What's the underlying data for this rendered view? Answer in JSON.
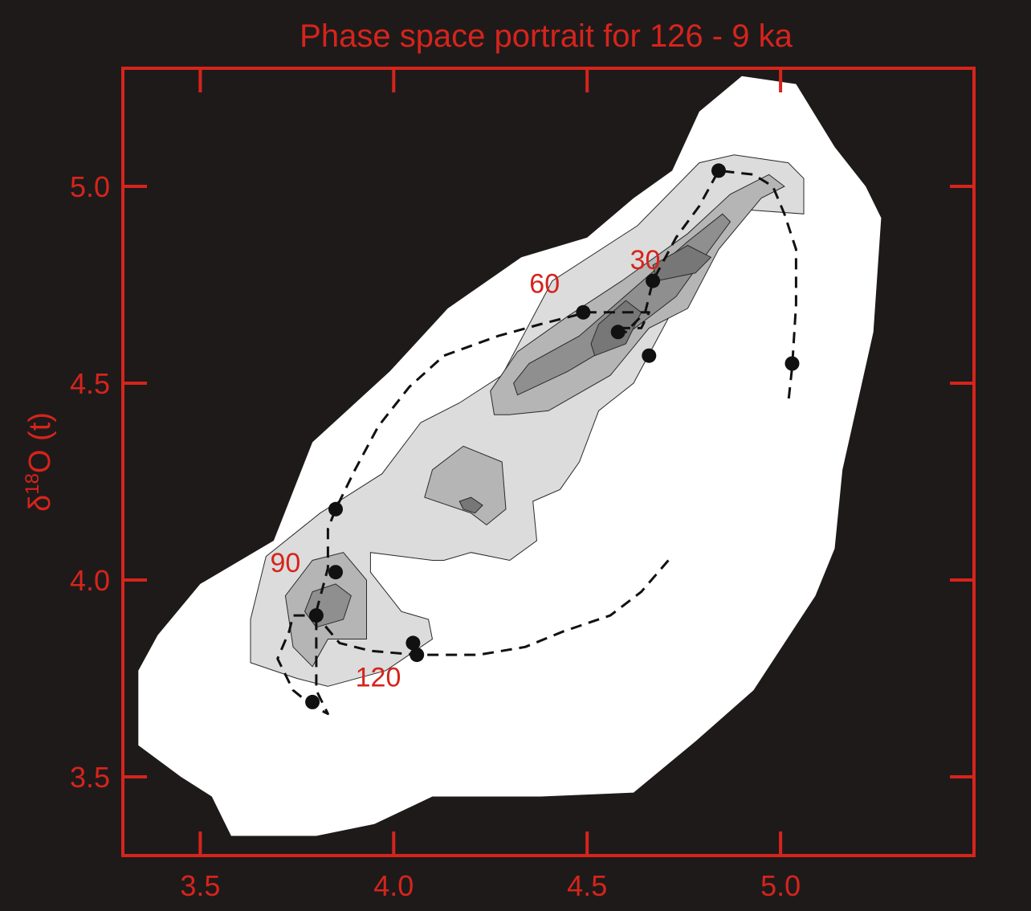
{
  "chart_data": {
    "type": "scatter",
    "subtype": "phase-space density contour with trajectory",
    "title": "Phase space portrait for 126 - 9 ka",
    "xlabel": "",
    "ylabel_main": "δ",
    "ylabel_sup": "18",
    "ylabel_rest": "O (t)",
    "xlim": [
      3.3,
      5.5
    ],
    "ylim": [
      3.3,
      5.3
    ],
    "x_ticks": [
      3.5,
      4.0,
      4.5,
      5.0
    ],
    "x_tick_labels": [
      "3.5",
      "4.0",
      "4.5",
      "5.0"
    ],
    "y_ticks": [
      3.5,
      4.0,
      4.5,
      5.0
    ],
    "y_tick_labels": [
      "3.5",
      "4.0",
      "4.5",
      "5.0"
    ],
    "grid": false,
    "colors": {
      "background": "#1e1a1a",
      "axes": "#d6241c",
      "density_levels": [
        "#ffffff",
        "#dcdcdc",
        "#b5b5b5",
        "#8f8f8f",
        "#777777"
      ],
      "trajectory": "#111111"
    },
    "density_contours": [
      {
        "level": 1,
        "color": "#ffffff",
        "points": [
          [
            3.58,
            3.35
          ],
          [
            3.8,
            3.35
          ],
          [
            3.95,
            3.38
          ],
          [
            4.1,
            3.45
          ],
          [
            4.38,
            3.45
          ],
          [
            4.62,
            3.46
          ],
          [
            4.78,
            3.59
          ],
          [
            4.93,
            3.72
          ],
          [
            5.09,
            3.96
          ],
          [
            5.14,
            4.08
          ],
          [
            5.16,
            4.28
          ],
          [
            5.24,
            4.63
          ],
          [
            5.26,
            4.92
          ],
          [
            5.22,
            5.0
          ],
          [
            5.14,
            5.1
          ],
          [
            5.04,
            5.26
          ],
          [
            4.9,
            5.28
          ],
          [
            4.79,
            5.19
          ],
          [
            4.72,
            5.04
          ],
          [
            4.62,
            4.97
          ],
          [
            4.5,
            4.87
          ],
          [
            4.33,
            4.82
          ],
          [
            4.14,
            4.69
          ],
          [
            3.99,
            4.53
          ],
          [
            3.79,
            4.35
          ],
          [
            3.69,
            4.1
          ],
          [
            3.5,
            3.99
          ],
          [
            3.39,
            3.86
          ],
          [
            3.34,
            3.77
          ],
          [
            3.34,
            3.58
          ],
          [
            3.45,
            3.5
          ],
          [
            3.53,
            3.45
          ]
        ]
      },
      {
        "level": 2,
        "color": "#dcdcdc",
        "points": [
          [
            3.83,
            3.73
          ],
          [
            3.98,
            3.77
          ],
          [
            4.1,
            3.85
          ],
          [
            4.09,
            3.9
          ],
          [
            4.02,
            3.92
          ],
          [
            3.94,
            4.02
          ],
          [
            3.94,
            4.07
          ],
          [
            4.1,
            4.05
          ],
          [
            4.13,
            4.05
          ],
          [
            4.2,
            4.07
          ],
          [
            4.3,
            4.05
          ],
          [
            4.37,
            4.1
          ],
          [
            4.36,
            4.2
          ],
          [
            4.43,
            4.23
          ],
          [
            4.48,
            4.3
          ],
          [
            4.53,
            4.43
          ],
          [
            4.62,
            4.5
          ],
          [
            4.74,
            4.72
          ],
          [
            4.84,
            4.91
          ],
          [
            4.92,
            4.94
          ],
          [
            5.06,
            4.93
          ],
          [
            5.06,
            5.02
          ],
          [
            5.02,
            5.06
          ],
          [
            4.88,
            5.08
          ],
          [
            4.79,
            5.06
          ],
          [
            4.63,
            4.9
          ],
          [
            4.41,
            4.76
          ],
          [
            4.28,
            4.52
          ],
          [
            4.17,
            4.45
          ],
          [
            4.07,
            4.4
          ],
          [
            3.97,
            4.27
          ],
          [
            3.81,
            4.17
          ],
          [
            3.67,
            4.06
          ],
          [
            3.63,
            3.9
          ],
          [
            3.63,
            3.79
          ],
          [
            3.75,
            3.75
          ]
        ]
      },
      {
        "level": 3,
        "color": "#b5b5b5",
        "points": [
          [
            3.83,
            3.85
          ],
          [
            3.93,
            3.85
          ],
          [
            3.93,
            4.0
          ],
          [
            3.87,
            4.07
          ],
          [
            3.79,
            4.05
          ],
          [
            3.72,
            3.96
          ],
          [
            3.74,
            3.83
          ],
          [
            3.79,
            3.78
          ]
        ]
      },
      {
        "level": 3,
        "color": "#b5b5b5",
        "points": [
          [
            4.2,
            4.17
          ],
          [
            4.24,
            4.14
          ],
          [
            4.29,
            4.18
          ],
          [
            4.28,
            4.3
          ],
          [
            4.18,
            4.34
          ],
          [
            4.1,
            4.28
          ],
          [
            4.08,
            4.21
          ]
        ]
      },
      {
        "level": 3,
        "color": "#b5b5b5",
        "points": [
          [
            4.3,
            4.42
          ],
          [
            4.4,
            4.43
          ],
          [
            4.56,
            4.52
          ],
          [
            4.66,
            4.64
          ],
          [
            4.76,
            4.69
          ],
          [
            4.84,
            4.84
          ],
          [
            4.95,
            4.97
          ],
          [
            5.01,
            5.0
          ],
          [
            4.97,
            5.03
          ],
          [
            4.87,
            4.98
          ],
          [
            4.76,
            4.88
          ],
          [
            4.59,
            4.76
          ],
          [
            4.45,
            4.67
          ],
          [
            4.32,
            4.58
          ],
          [
            4.25,
            4.48
          ],
          [
            4.26,
            4.42
          ]
        ]
      },
      {
        "level": 4,
        "color": "#8f8f8f",
        "points": [
          [
            3.8,
            3.88
          ],
          [
            3.87,
            3.9
          ],
          [
            3.89,
            3.96
          ],
          [
            3.85,
            3.99
          ],
          [
            3.79,
            3.97
          ],
          [
            3.77,
            3.92
          ]
        ]
      },
      {
        "level": 4,
        "color": "#8f8f8f",
        "points": [
          [
            4.32,
            4.47
          ],
          [
            4.45,
            4.53
          ],
          [
            4.57,
            4.6
          ],
          [
            4.65,
            4.66
          ],
          [
            4.73,
            4.72
          ],
          [
            4.81,
            4.83
          ],
          [
            4.87,
            4.91
          ],
          [
            4.85,
            4.93
          ],
          [
            4.76,
            4.86
          ],
          [
            4.62,
            4.74
          ],
          [
            4.48,
            4.62
          ],
          [
            4.35,
            4.55
          ],
          [
            4.31,
            4.5
          ]
        ]
      },
      {
        "level": 5,
        "color": "#777777",
        "points": [
          [
            4.18,
            4.18
          ],
          [
            4.21,
            4.17
          ],
          [
            4.23,
            4.19
          ],
          [
            4.2,
            4.21
          ],
          [
            4.17,
            4.2
          ]
        ]
      },
      {
        "level": 5,
        "color": "#777777",
        "points": [
          [
            4.52,
            4.57
          ],
          [
            4.6,
            4.6
          ],
          [
            4.64,
            4.68
          ],
          [
            4.6,
            4.71
          ],
          [
            4.53,
            4.65
          ],
          [
            4.51,
            4.6
          ]
        ]
      },
      {
        "level": 5,
        "color": "#777777",
        "points": [
          [
            4.68,
            4.76
          ],
          [
            4.78,
            4.78
          ],
          [
            4.82,
            4.82
          ],
          [
            4.76,
            4.85
          ],
          [
            4.67,
            4.8
          ]
        ]
      }
    ],
    "trajectory": [
      [
        4.71,
        4.05
      ],
      [
        4.64,
        3.97
      ],
      [
        4.56,
        3.91
      ],
      [
        4.44,
        3.87
      ],
      [
        4.34,
        3.83
      ],
      [
        4.22,
        3.81
      ],
      [
        4.12,
        3.81
      ],
      [
        4.06,
        3.81
      ],
      [
        3.94,
        3.82
      ],
      [
        3.86,
        3.84
      ],
      [
        3.8,
        3.91
      ],
      [
        3.74,
        3.91
      ],
      [
        3.73,
        3.87
      ],
      [
        3.7,
        3.8
      ],
      [
        3.74,
        3.72
      ],
      [
        3.79,
        3.68
      ],
      [
        3.83,
        3.66
      ],
      [
        3.8,
        3.72
      ],
      [
        3.8,
        3.83
      ],
      [
        3.8,
        3.92
      ],
      [
        3.83,
        4.03
      ],
      [
        3.83,
        4.13
      ],
      [
        3.85,
        4.18
      ],
      [
        3.9,
        4.28
      ],
      [
        3.96,
        4.39
      ],
      [
        4.04,
        4.49
      ],
      [
        4.13,
        4.57
      ],
      [
        4.27,
        4.62
      ],
      [
        4.38,
        4.65
      ],
      [
        4.5,
        4.68
      ],
      [
        4.59,
        4.68
      ],
      [
        4.66,
        4.68
      ],
      [
        4.64,
        4.64
      ],
      [
        4.59,
        4.64
      ],
      [
        4.57,
        4.63
      ],
      [
        4.6,
        4.63
      ],
      [
        4.65,
        4.68
      ],
      [
        4.67,
        4.76
      ],
      [
        4.73,
        4.87
      ],
      [
        4.79,
        4.95
      ],
      [
        4.84,
        5.04
      ],
      [
        4.93,
        5.03
      ],
      [
        4.98,
        5.0
      ],
      [
        5.01,
        4.93
      ],
      [
        5.04,
        4.84
      ],
      [
        5.04,
        4.7
      ],
      [
        5.03,
        4.54
      ],
      [
        5.02,
        4.45
      ]
    ],
    "markers": [
      [
        4.84,
        5.04
      ],
      [
        4.67,
        4.76
      ],
      [
        4.49,
        4.68
      ],
      [
        4.58,
        4.63
      ],
      [
        4.66,
        4.57
      ],
      [
        5.03,
        4.55
      ],
      [
        3.85,
        4.18
      ],
      [
        3.85,
        4.02
      ],
      [
        3.8,
        3.91
      ],
      [
        4.05,
        3.84
      ],
      [
        4.06,
        3.81
      ],
      [
        3.79,
        3.69
      ]
    ],
    "annotations": [
      {
        "text": "30",
        "x": 4.65,
        "y": 4.79
      },
      {
        "text": "60",
        "x": 4.39,
        "y": 4.73
      },
      {
        "text": "90",
        "x": 3.72,
        "y": 4.02
      },
      {
        "text": "120",
        "x": 3.96,
        "y": 3.73
      }
    ]
  }
}
